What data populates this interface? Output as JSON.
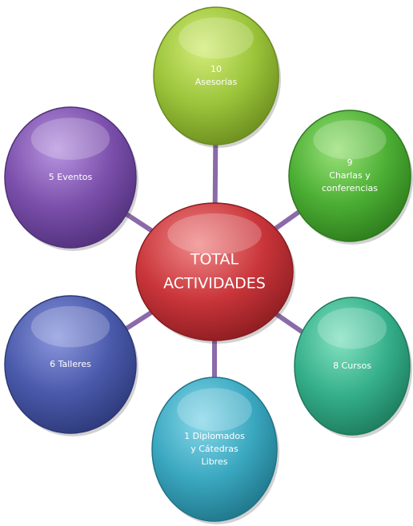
{
  "center": {
    "lines": [
      "TOTAL",
      "ACTIVIDADES"
    ]
  },
  "nodes": [
    {
      "lines": [
        "10",
        "Asesorías"
      ]
    },
    {
      "lines": [
        "9",
        "Charlas y",
        "conferencias"
      ]
    },
    {
      "lines": [
        "8 Cursos"
      ]
    },
    {
      "lines": [
        "1 Diplomados",
        "y Cátedras",
        "Libres"
      ]
    },
    {
      "lines": [
        "6  Talleres"
      ]
    },
    {
      "lines": [
        "5  Eventos"
      ]
    }
  ]
}
